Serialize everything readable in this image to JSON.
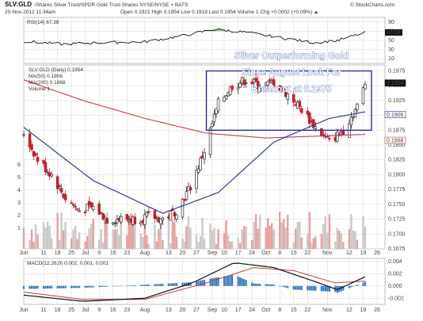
{
  "header": {
    "symbol": "SLV:GLD",
    "description": "iShares Silver Trust/SPDR Gold Trust Shares NYSE/NYSE + BATS",
    "source": "© StockCharts.com",
    "date": "20-Nov-2012 11:34am",
    "quote": "Open 0.1921  High 0.1954  Low 0.1919  Last 0.1954  Volume 1  Chg +0.0002 (+0.09%) ▲"
  },
  "annotation": [
    "Silver Outperforming Gold",
    "Since August Look For",
    "Breakout at 0.1975"
  ],
  "panels": {
    "rsi": {
      "label": "RSI(14) 67.38",
      "ticks": [
        "90",
        "70",
        "50",
        "30",
        "10"
      ],
      "last_value": "67.38"
    },
    "price": {
      "legend": [
        "SLV:GLD (Daily) 0.1954",
        "MA(50) 0.1906",
        "MA(200) 0.1868",
        "Volume 1"
      ],
      "ticks": [
        "0.1975",
        "0.1950",
        "0.1925",
        "0.1900",
        "0.1875",
        "0.1850",
        "0.1825",
        "0.1800",
        "0.1775",
        "0.1750",
        "0.1725",
        "0.1700",
        "0.1675"
      ],
      "badges": [
        "0.1954",
        "0.1906",
        "0.1868"
      ],
      "left_ticks": [
        "6",
        "5",
        "4",
        "3",
        "2",
        "1"
      ]
    },
    "macd": {
      "label": "MACD(12,26,9) 0.002, 0.001, 0.001",
      "ticks": [
        "0.004",
        "0.002",
        "0.000",
        "-0.002"
      ]
    }
  },
  "xaxis_top": [
    "Jun",
    "11",
    "18",
    "25",
    "Jul",
    "9",
    "16",
    "23",
    "Aug",
    "13",
    "20",
    "27",
    "Sep",
    "10",
    "17",
    "24",
    "Oct",
    "8",
    "15",
    "22",
    "Nov",
    "12",
    "19",
    "26"
  ],
  "xaxis_bottom": [
    "Jun",
    "11",
    "18",
    "25",
    "Jul",
    "9",
    "16",
    "23",
    "Aug",
    "13",
    "20",
    "27",
    "Sep",
    "10",
    "17",
    "24",
    "Oct",
    "8",
    "15",
    "22",
    "Nov",
    "12",
    "19",
    "26"
  ],
  "colors": {
    "up": "#2a2a2a",
    "down": "#c0202a",
    "ma50": "#1f2f8f",
    "ma200": "#c04040",
    "rsi": "#111111",
    "rsi_fill": "#4a9a3a",
    "macd": "#111111",
    "signal": "#c04040",
    "hist": "#3a7cc0",
    "box": "#2a2aa8",
    "volume": "#e8a0a0",
    "grid": "#d6d6d6"
  },
  "chart_data": {
    "type": "candlestick",
    "title": "SLV:GLD",
    "ylim": [
      0.1675,
      0.1985
    ],
    "x_start": "2012-06-01",
    "x_end": "2012-11-30",
    "price_anchors": [
      [
        "2012-06-01",
        0.187
      ],
      [
        "2012-06-08",
        0.1825
      ],
      [
        "2012-06-15",
        0.18
      ],
      [
        "2012-06-22",
        0.176
      ],
      [
        "2012-06-29",
        0.174
      ],
      [
        "2012-07-06",
        0.1745
      ],
      [
        "2012-07-13",
        0.1725
      ],
      [
        "2012-07-20",
        0.1725
      ],
      [
        "2012-07-27",
        0.1725
      ],
      [
        "2012-08-03",
        0.173
      ],
      [
        "2012-08-10",
        0.1725
      ],
      [
        "2012-08-17",
        0.174
      ],
      [
        "2012-08-24",
        0.178
      ],
      [
        "2012-08-31",
        0.184
      ],
      [
        "2012-09-07",
        0.192
      ],
      [
        "2012-09-14",
        0.195
      ],
      [
        "2012-09-21",
        0.196
      ],
      [
        "2012-09-28",
        0.195
      ],
      [
        "2012-10-05",
        0.1955
      ],
      [
        "2012-10-12",
        0.1935
      ],
      [
        "2012-10-19",
        0.191
      ],
      [
        "2012-10-26",
        0.188
      ],
      [
        "2012-11-02",
        0.1855
      ],
      [
        "2012-11-09",
        0.1875
      ],
      [
        "2012-11-16",
        0.1915
      ],
      [
        "2012-11-20",
        0.1954
      ]
    ],
    "ma50_anchors": [
      [
        "2012-06-01",
        0.188
      ],
      [
        "2012-07-06",
        0.179
      ],
      [
        "2012-08-10",
        0.1735
      ],
      [
        "2012-09-07",
        0.177
      ],
      [
        "2012-10-05",
        0.1855
      ],
      [
        "2012-11-02",
        0.1895
      ],
      [
        "2012-11-20",
        0.1906
      ]
    ],
    "ma200_anchors": [
      [
        "2012-06-01",
        0.196
      ],
      [
        "2012-07-01",
        0.1925
      ],
      [
        "2012-08-01",
        0.1895
      ],
      [
        "2012-09-01",
        0.187
      ],
      [
        "2012-10-01",
        0.1862
      ],
      [
        "2012-11-20",
        0.1868
      ]
    ],
    "rsi_anchors": [
      [
        "2012-06-01",
        48
      ],
      [
        "2012-06-20",
        42
      ],
      [
        "2012-07-10",
        45
      ],
      [
        "2012-08-01",
        47
      ],
      [
        "2012-08-20",
        60
      ],
      [
        "2012-09-05",
        74
      ],
      [
        "2012-09-20",
        68
      ],
      [
        "2012-10-10",
        55
      ],
      [
        "2012-10-25",
        45
      ],
      [
        "2012-11-06",
        50
      ],
      [
        "2012-11-20",
        67
      ]
    ],
    "macd_anchors": [
      [
        "2012-06-01",
        -0.0015
      ],
      [
        "2012-07-01",
        -0.0025
      ],
      [
        "2012-08-01",
        -0.002
      ],
      [
        "2012-08-25",
        0.0005
      ],
      [
        "2012-09-15",
        0.0038
      ],
      [
        "2012-10-05",
        0.003
      ],
      [
        "2012-10-25",
        0.0008
      ],
      [
        "2012-11-06",
        -0.0006
      ],
      [
        "2012-11-20",
        0.0015
      ]
    ],
    "signal_anchors": [
      [
        "2012-06-01",
        -0.001
      ],
      [
        "2012-07-01",
        -0.0022
      ],
      [
        "2012-08-01",
        -0.0022
      ],
      [
        "2012-09-01",
        0.0005
      ],
      [
        "2012-09-25",
        0.003
      ],
      [
        "2012-10-15",
        0.0025
      ],
      [
        "2012-11-05",
        0.0005
      ],
      [
        "2012-11-20",
        0.0008
      ]
    ],
    "resistance_box": {
      "x0": "2012-09-01",
      "x1": "2012-11-20",
      "y0": 0.1875,
      "y1": 0.1975
    }
  }
}
